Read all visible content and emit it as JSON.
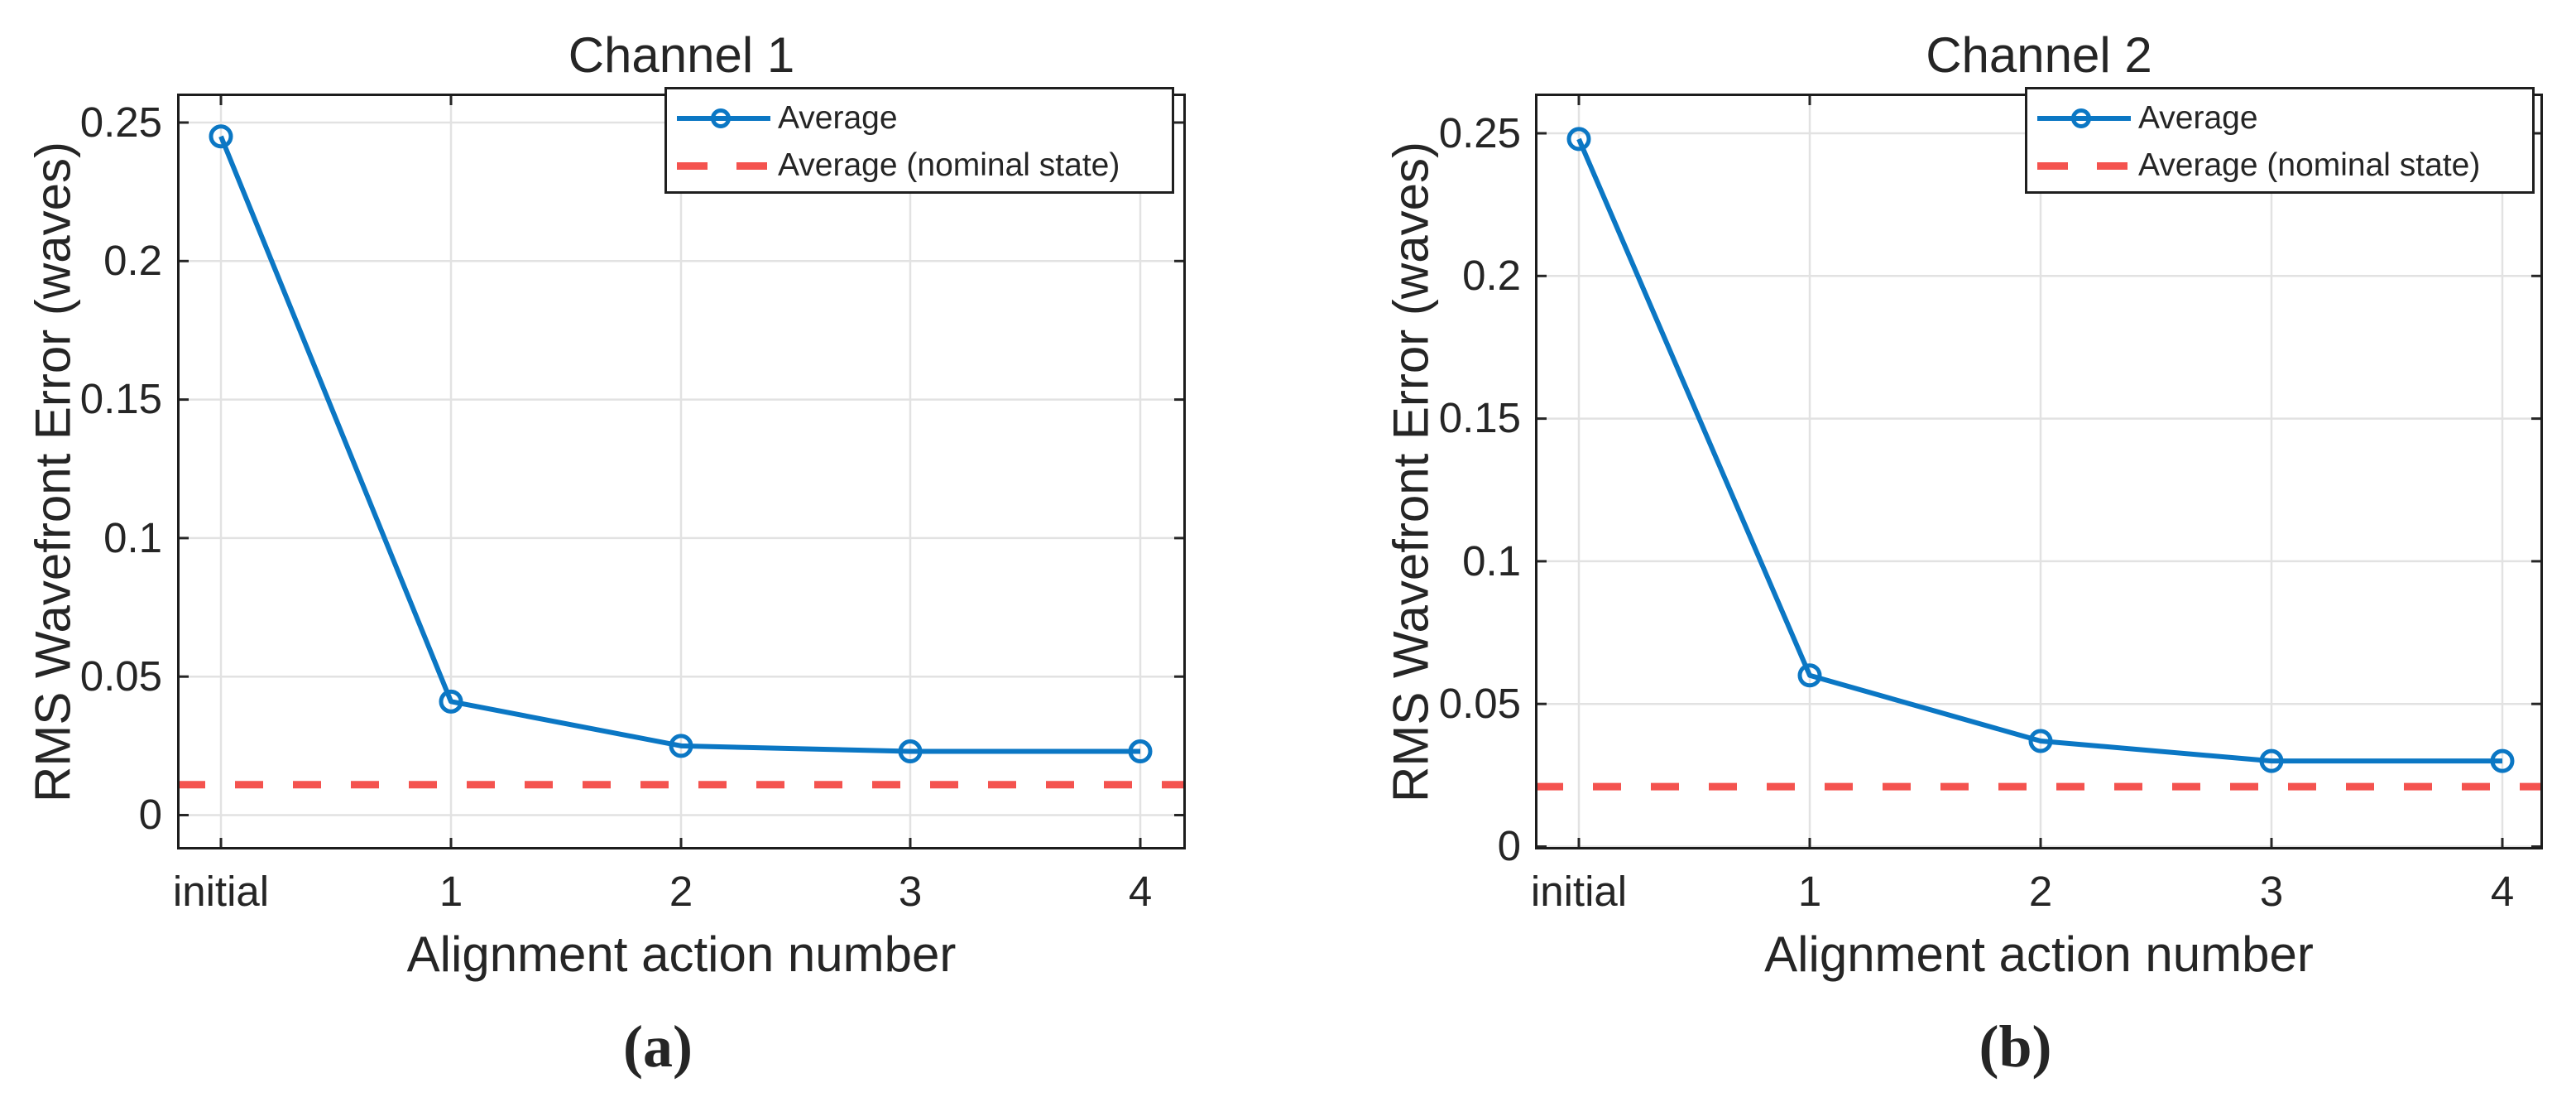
{
  "figure": {
    "kind": "two-panel line chart figure",
    "background": "#ffffff",
    "accent_blue": "#0b77c4",
    "accent_red": "#f4534f"
  },
  "chart_data": [
    {
      "type": "line",
      "title": "Channel 1",
      "xlabel": "Alignment action number",
      "ylabel": "RMS Wavefront Error (waves)",
      "caption": "(a)",
      "categories": [
        "initial",
        "1",
        "2",
        "3",
        "4"
      ],
      "series": [
        {
          "name": "Average",
          "style": "solid-line-circle-marker",
          "color": "#0b77c4",
          "values": [
            0.245,
            0.041,
            0.025,
            0.023,
            0.023
          ]
        },
        {
          "name": "Average (nominal state)",
          "style": "dashed-horizontal-line",
          "color": "#f4534f",
          "value": 0.011
        }
      ],
      "y_ticks": [
        0,
        0.05,
        0.1,
        0.15,
        0.2,
        0.25
      ],
      "y_tick_labels": [
        "0",
        "0.05",
        "0.1",
        "0.15",
        "0.2",
        "0.25"
      ],
      "ylim": [
        -0.012,
        0.261
      ],
      "grid": true,
      "legend_position": "top-right"
    },
    {
      "type": "line",
      "title": "Channel 2",
      "xlabel": "Alignment action number",
      "ylabel": "RMS Wavefront Error (waves)",
      "caption": "(b)",
      "categories": [
        "initial",
        "1",
        "2",
        "3",
        "4"
      ],
      "series": [
        {
          "name": "Average",
          "style": "solid-line-circle-marker",
          "color": "#0b77c4",
          "values": [
            0.248,
            0.06,
            0.037,
            0.03,
            0.03
          ]
        },
        {
          "name": "Average (nominal state)",
          "style": "dashed-horizontal-line",
          "color": "#f4534f",
          "value": 0.021
        }
      ],
      "y_ticks": [
        0,
        0.05,
        0.1,
        0.15,
        0.2,
        0.25
      ],
      "y_tick_labels": [
        "0",
        "0.05",
        "0.1",
        "0.15",
        "0.2",
        "0.25"
      ],
      "ylim": [
        0,
        0.264
      ],
      "grid": true,
      "legend_position": "top-right"
    }
  ]
}
